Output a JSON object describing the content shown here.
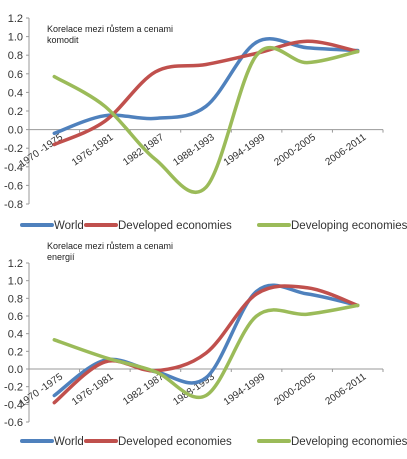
{
  "chart_data": [
    {
      "type": "line",
      "title": "Korelace mezi růstem a cenami komodit",
      "title_lines": [
        "Korelace mezi růstem a cenami",
        "komodit"
      ],
      "categories": [
        "1970 -1975",
        "1976-1981",
        "1982 1987",
        "1988-1993",
        "1994-1999",
        "2000-2005",
        "2006-2011"
      ],
      "ylim": [
        -0.8,
        1.2
      ],
      "yticks": [
        "-0.8",
        "-0.6",
        "-0.4",
        "-0.2",
        "0.0",
        "0.2",
        "0.4",
        "0.6",
        "0.8",
        "1.0",
        "1.2"
      ],
      "grid": false,
      "legend_position": "bottom",
      "series": [
        {
          "name": "World",
          "color": "#4f81bd",
          "values": [
            -0.04,
            0.15,
            0.12,
            0.25,
            0.94,
            0.88,
            0.85
          ]
        },
        {
          "name": "Developed economies",
          "color": "#c0504d",
          "values": [
            -0.16,
            0.09,
            0.62,
            0.7,
            0.82,
            0.95,
            0.84
          ]
        },
        {
          "name": "Developing economies",
          "color": "#9bbb59",
          "values": [
            0.57,
            0.25,
            -0.32,
            -0.62,
            0.8,
            0.72,
            0.84
          ]
        }
      ]
    },
    {
      "type": "line",
      "title": "Korelace mezi růstem a cenami energií",
      "title_lines": [
        "Korelace mezi růstem a cenami",
        "energií"
      ],
      "categories": [
        "1970 -1975",
        "1976-1981",
        "1982 1987",
        "1988-1993",
        "1994-1999",
        "2000-2005",
        "2006-2011"
      ],
      "ylim": [
        -0.6,
        1.2
      ],
      "yticks": [
        "-0.6",
        "-0.4",
        "-0.2",
        "0.0",
        "0.2",
        "0.4",
        "0.6",
        "0.8",
        "1.0",
        "1.2"
      ],
      "grid": false,
      "legend_position": "bottom",
      "series": [
        {
          "name": "World",
          "color": "#4f81bd",
          "values": [
            -0.3,
            0.1,
            -0.03,
            -0.1,
            0.88,
            0.85,
            0.72
          ]
        },
        {
          "name": "Developed economies",
          "color": "#c0504d",
          "values": [
            -0.38,
            0.08,
            -0.02,
            0.18,
            0.85,
            0.92,
            0.72
          ]
        },
        {
          "name": "Developing economies",
          "color": "#9bbb59",
          "values": [
            0.33,
            0.13,
            -0.03,
            -0.3,
            0.6,
            0.62,
            0.72
          ]
        }
      ]
    }
  ]
}
